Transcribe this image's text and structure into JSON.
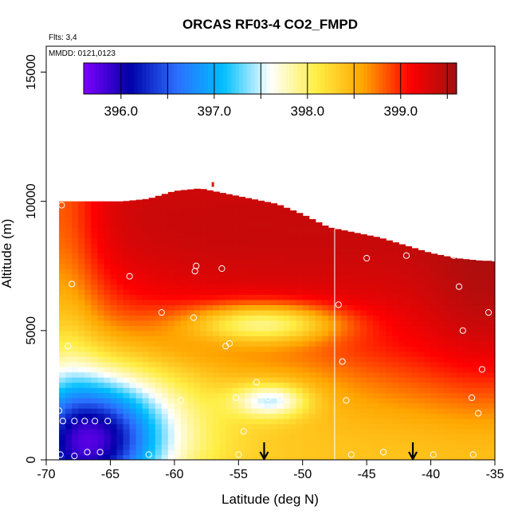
{
  "chart_data": {
    "type": "heatmap",
    "title": "ORCAS RF03-4 CO2_FMPD",
    "flights_note": "Flts: 3,4",
    "dates_note": "MMDD: 0121,0123",
    "xlabel": "Latitude (deg N)",
    "ylabel": "Altitude (m)",
    "xlim": [
      -70,
      -35
    ],
    "ylim": [
      0,
      16000
    ],
    "x_ticks": [
      -70,
      -65,
      -60,
      -55,
      -50,
      -45,
      -40,
      -35
    ],
    "x_tick_labels": [
      "-70",
      "-65",
      "-60",
      "-55",
      "-50",
      "-45",
      "-40",
      "-35"
    ],
    "y_ticks": [
      0,
      5000,
      10000,
      15000
    ],
    "y_tick_labels": [
      "0",
      "5000",
      "10000",
      "15000"
    ],
    "colorbar": {
      "min": 395.6,
      "max": 399.6,
      "tick_values": [
        396.0,
        397.0,
        398.0,
        399.0
      ],
      "tick_labels": [
        "396.0",
        "397.0",
        "398.0",
        "399.0"
      ],
      "colors": [
        "#7f00ff",
        "#0000a8",
        "#2b6fff",
        "#00bfff",
        "#ffffff",
        "#ffee44",
        "#ffa500",
        "#ff0000",
        "#a01010"
      ]
    },
    "field_extent": {
      "lat_min": -69.0,
      "lat_max": -35.0,
      "ceiling": [
        [
          -69,
          10000
        ],
        [
          -64,
          10000
        ],
        [
          -62,
          10100
        ],
        [
          -60,
          10400
        ],
        [
          -58,
          10500
        ],
        [
          -56,
          10300
        ],
        [
          -54,
          10100
        ],
        [
          -52,
          9900
        ],
        [
          -50,
          9500
        ],
        [
          -48,
          9000
        ],
        [
          -46,
          8800
        ],
        [
          -44,
          8600
        ],
        [
          -42,
          8300
        ],
        [
          -40,
          8000
        ],
        [
          -38,
          7800
        ],
        [
          -36,
          7700
        ],
        [
          -35,
          7700
        ]
      ]
    },
    "features": {
      "plume_layer_altitude": 5300,
      "plume_lat_range": [
        -60,
        -47
      ],
      "lower_plume_altitude": 2300,
      "lower_plume_lat_range": [
        -55,
        -50
      ],
      "background_high_value": 399.3,
      "surface_low_value": 396.3,
      "surface_low_lat_range": [
        -69,
        -63
      ]
    },
    "sample_points": [
      [
        -68.8,
        9850
      ],
      [
        -68.0,
        6800
      ],
      [
        -68.3,
        4400
      ],
      [
        -69.0,
        1900
      ],
      [
        -68.7,
        1500
      ],
      [
        -67.8,
        1500
      ],
      [
        -67.0,
        1500
      ],
      [
        -66.2,
        1500
      ],
      [
        -65.2,
        1500
      ],
      [
        -68.9,
        200
      ],
      [
        -67.8,
        150
      ],
      [
        -66.8,
        300
      ],
      [
        -65.8,
        300
      ],
      [
        -62.0,
        200
      ],
      [
        -60.0,
        200
      ],
      [
        -55.0,
        200
      ],
      [
        -54.6,
        1100
      ],
      [
        -55.2,
        2400
      ],
      [
        -53.6,
        3000
      ],
      [
        -52.7,
        2400
      ],
      [
        -51.8,
        2400
      ],
      [
        -59.5,
        2300
      ],
      [
        -58.5,
        5500
      ],
      [
        -61.0,
        5700
      ],
      [
        -63.5,
        7100
      ],
      [
        -58.3,
        7500
      ],
      [
        -58.4,
        7300
      ],
      [
        -56.3,
        7400
      ],
      [
        -56.0,
        4400
      ],
      [
        -55.7,
        4500
      ],
      [
        -47.2,
        6000
      ],
      [
        -46.9,
        3800
      ],
      [
        -46.6,
        2300
      ],
      [
        -46.2,
        200
      ],
      [
        -43.7,
        300
      ],
      [
        -45.0,
        7800
      ],
      [
        -41.9,
        7900
      ],
      [
        -39.8,
        200
      ],
      [
        -38.2,
        7900
      ],
      [
        -37.8,
        6700
      ],
      [
        -37.5,
        5000
      ],
      [
        -36.8,
        2400
      ],
      [
        -36.3,
        1800
      ],
      [
        -36.0,
        3500
      ],
      [
        -35.5,
        5700
      ],
      [
        -35.1,
        7800
      ],
      [
        -36.7,
        200
      ]
    ],
    "vertical_line_lat": -47.5,
    "arrows_lat": [
      -53.0,
      -41.4
    ],
    "top_marker": [
      -57.0,
      10650
    ]
  }
}
